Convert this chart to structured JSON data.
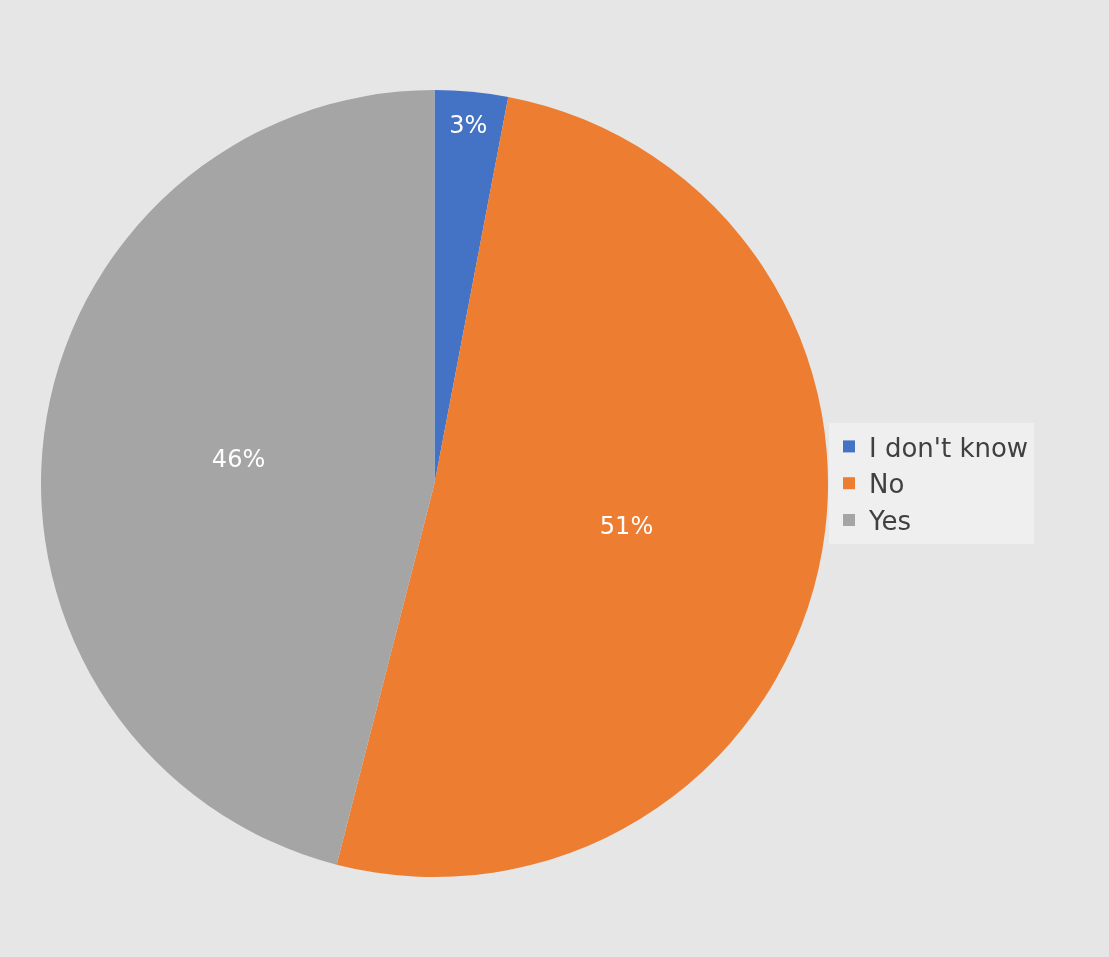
{
  "chart_data": {
    "type": "pie",
    "categories": [
      "I don't know",
      "No",
      "Yes"
    ],
    "values": [
      3,
      51,
      46
    ],
    "colors": [
      "#4472c4",
      "#ed7d31",
      "#a5a5a5"
    ],
    "value_labels": [
      "3%",
      "51%",
      "46%"
    ],
    "legend": "right"
  }
}
